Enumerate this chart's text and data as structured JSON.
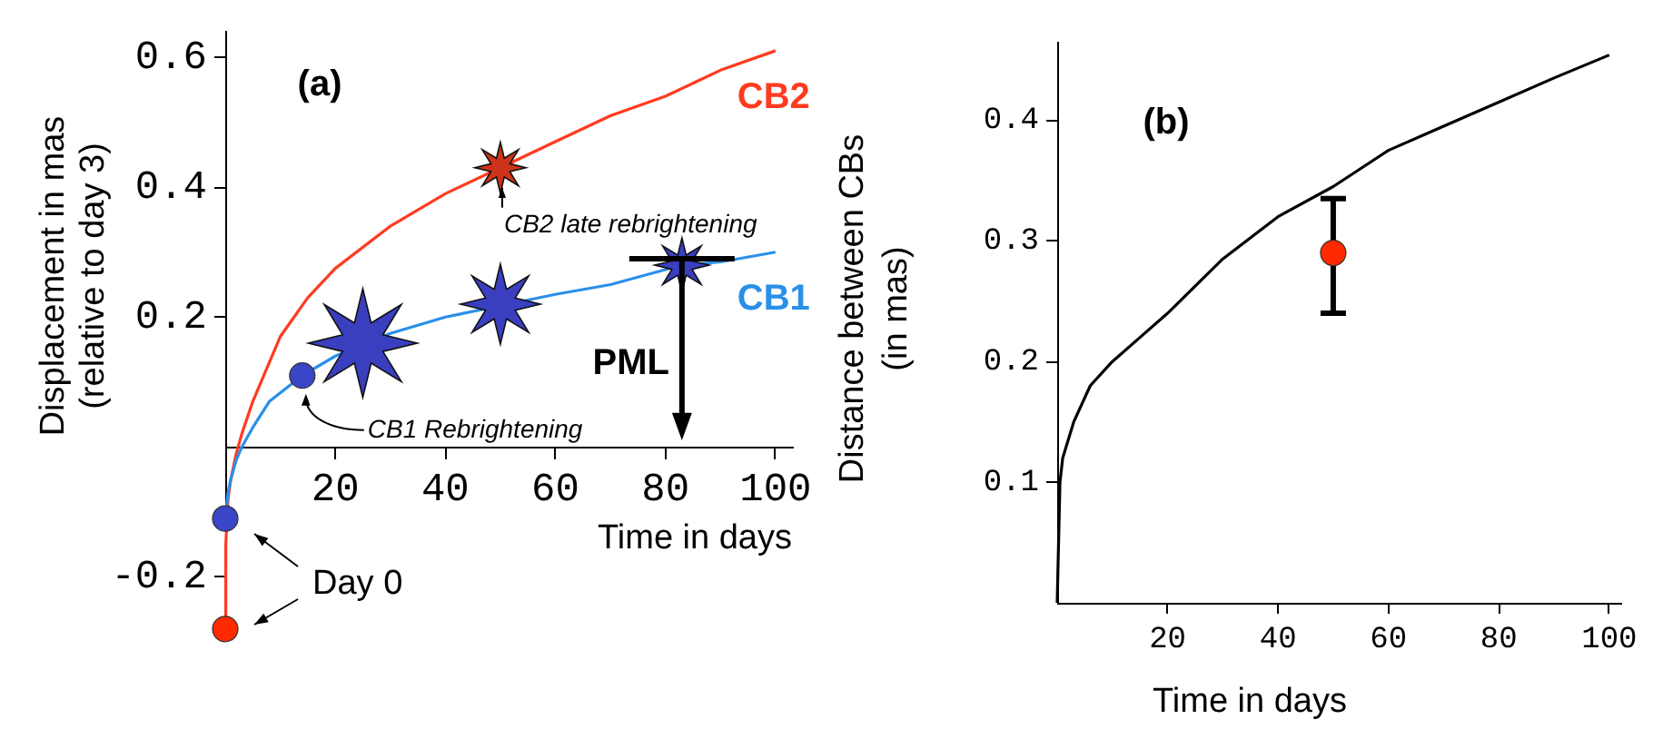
{
  "chart_data": [
    {
      "type": "line",
      "title": "(a)",
      "xlabel": "Time in days",
      "ylabel": "Displacement in mas\n(relative to day 3)",
      "xlim": [
        0,
        103
      ],
      "ylim": [
        -0.29,
        0.64
      ],
      "xticks": [
        20,
        40,
        60,
        80,
        100
      ],
      "yticks": [
        -0.2,
        0.2,
        0.4,
        0.6
      ],
      "annotations": [
        {
          "text": "CB2 late rebrightening",
          "x": 50,
          "y": 0.43
        },
        {
          "text": "CB1 Rebrightening",
          "x": 14,
          "y": 0.11
        },
        {
          "text": "PML",
          "x": 83,
          "y": 0.29
        },
        "Day 0"
      ],
      "series": [
        {
          "name": "CB2",
          "marker": "none",
          "color": "#ff3b1f",
          "x": [
            0,
            0.1,
            0.5,
            1,
            2,
            3,
            5,
            7,
            10,
            15,
            20,
            30,
            40,
            50,
            60,
            70,
            80,
            90,
            100
          ],
          "values": [
            -0.28,
            -0.15,
            -0.08,
            -0.05,
            -0.01,
            0.02,
            0.07,
            0.11,
            0.17,
            0.23,
            0.275,
            0.34,
            0.39,
            0.43,
            0.47,
            0.51,
            0.54,
            0.58,
            0.61
          ]
        },
        {
          "name": "CB1",
          "marker": "none",
          "color": "#2a8fe8",
          "x": [
            0,
            0.5,
            1,
            2,
            3,
            5,
            8,
            11,
            14,
            20,
            30,
            40,
            60,
            70,
            83,
            90,
            100
          ],
          "values": [
            -0.11,
            -0.07,
            -0.05,
            -0.02,
            0,
            0.03,
            0.07,
            0.09,
            0.11,
            0.14,
            0.175,
            0.2,
            0.235,
            0.25,
            0.28,
            0.285,
            0.3
          ]
        },
        {
          "type": "scatter",
          "marker": "circle",
          "color": "#3a45c8",
          "x": [
            0,
            14
          ],
          "values": [
            -0.11,
            0.11
          ]
        },
        {
          "type": "scatter",
          "marker": "circle",
          "color": "#ff2a00",
          "x": [
            0
          ],
          "values": [
            -0.28
          ]
        },
        {
          "type": "bubble",
          "marker": "star",
          "color": "#3a3fc0",
          "x": [
            25,
            50,
            83
          ],
          "values": [
            0.16,
            0.22,
            0.28
          ],
          "sizes": [
            1,
            0.54,
            0.25
          ]
        },
        {
          "type": "bubble",
          "marker": "star",
          "color": "#cc3318",
          "x": [
            50
          ],
          "values": [
            0.43
          ],
          "sizes": [
            0.22
          ]
        }
      ]
    },
    {
      "type": "line",
      "title": "(b)",
      "xlabel": "Time in days",
      "ylabel": "Distance between CBs\n(in mas)",
      "xlim": [
        0,
        102
      ],
      "ylim": [
        0,
        0.465
      ],
      "xticks": [
        20,
        40,
        60,
        80,
        100
      ],
      "yticks": [
        0.1,
        0.2,
        0.3,
        0.4
      ],
      "series": [
        {
          "marker": "none",
          "color": "#000000",
          "x": [
            0,
            0.5,
            1,
            3,
            6,
            10,
            15,
            20,
            30,
            40,
            50,
            60,
            70,
            80,
            90,
            100
          ],
          "values": [
            0,
            0.1,
            0.12,
            0.15,
            0.18,
            0.2,
            0.22,
            0.24,
            0.285,
            0.32,
            0.345,
            0.375,
            0.395,
            0.415,
            0.435,
            0.454
          ]
        },
        {
          "type": "scatter",
          "marker": "circle",
          "color": "#ff2a00",
          "x": [
            50
          ],
          "values": [
            0.29
          ],
          "errors": [
            [
              0.24,
              0.335
            ]
          ]
        }
      ]
    }
  ]
}
